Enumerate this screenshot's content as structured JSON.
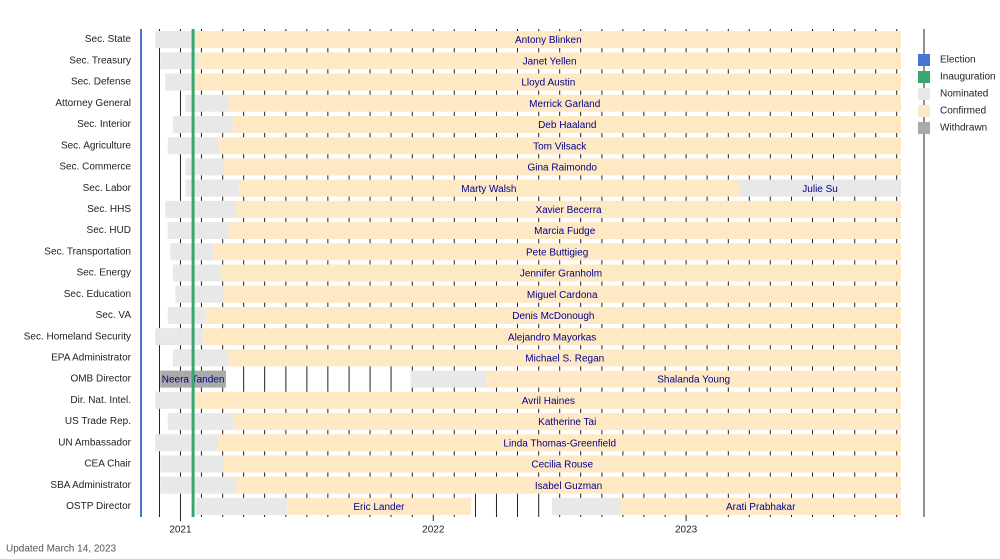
{
  "chart_data": {
    "type": "timeline",
    "footnote": "Updated March 14, 2023",
    "xlim": [
      2020.84,
      2023.85
    ],
    "xticks": [
      2021,
      2022,
      2023
    ],
    "xminorticks": [
      2020.917,
      2021,
      2021.083,
      2021.167,
      2021.25,
      2021.333,
      2021.417,
      2021.5,
      2021.583,
      2021.667,
      2021.75,
      2021.833,
      2021.917,
      2022,
      2022.083,
      2022.167,
      2022.25,
      2022.333,
      2022.417,
      2022.5,
      2022.583,
      2022.667,
      2022.75,
      2022.833,
      2022.917,
      2023,
      2023.083,
      2023.167,
      2023.25,
      2023.333,
      2023.417,
      2023.5,
      2023.583,
      2023.667,
      2023.75,
      2023.833
    ],
    "election": 2020.84,
    "inauguration": 2021.05,
    "series": [
      {
        "name": "Election",
        "color": "#4a74d0"
      },
      {
        "name": "Inauguration",
        "color": "#3aa66f"
      },
      {
        "name": "Nominated",
        "color": "#e8e8e8"
      },
      {
        "name": "Confirmed",
        "color": "#ffe9c4"
      },
      {
        "name": "Withdrawn",
        "color": "#aaaaaa"
      }
    ],
    "rows": [
      {
        "label": "Sec. State",
        "terms": [
          {
            "name": "Antony Blinken",
            "nominated": 2020.9,
            "confirmed": 2021.06,
            "end": 2023.85
          }
        ]
      },
      {
        "label": "Sec. Treasury",
        "terms": [
          {
            "name": "Janet Yellen",
            "nominated": 2020.92,
            "confirmed": 2021.07,
            "end": 2023.85
          }
        ]
      },
      {
        "label": "Sec. Defense",
        "terms": [
          {
            "name": "Lloyd Austin",
            "nominated": 2020.94,
            "confirmed": 2021.06,
            "end": 2023.85
          }
        ]
      },
      {
        "label": "Attorney General",
        "terms": [
          {
            "name": "Merrick Garland",
            "nominated": 2021.02,
            "confirmed": 2021.19,
            "end": 2023.85
          }
        ]
      },
      {
        "label": "Sec. Interior",
        "terms": [
          {
            "name": "Deb Haaland",
            "nominated": 2020.97,
            "confirmed": 2021.21,
            "end": 2023.85
          }
        ]
      },
      {
        "label": "Sec. Agriculture",
        "terms": [
          {
            "name": "Tom Vilsack",
            "nominated": 2020.95,
            "confirmed": 2021.15,
            "end": 2023.85
          }
        ]
      },
      {
        "label": "Sec. Commerce",
        "terms": [
          {
            "name": "Gina Raimondo",
            "nominated": 2021.02,
            "confirmed": 2021.17,
            "end": 2023.85
          }
        ]
      },
      {
        "label": "Sec. Labor",
        "terms": [
          {
            "name": "Marty Walsh",
            "nominated": 2021.02,
            "confirmed": 2021.23,
            "end": 2023.21
          },
          {
            "name": "Julie Su",
            "nominated": 2023.21,
            "end": 2023.85
          }
        ]
      },
      {
        "label": "Sec. HHS",
        "terms": [
          {
            "name": "Xavier Becerra",
            "nominated": 2020.94,
            "confirmed": 2021.22,
            "end": 2023.85
          }
        ]
      },
      {
        "label": "Sec. HUD",
        "terms": [
          {
            "name": "Marcia Fudge",
            "nominated": 2020.95,
            "confirmed": 2021.19,
            "end": 2023.85
          }
        ]
      },
      {
        "label": "Sec. Transportation",
        "terms": [
          {
            "name": "Pete Buttigieg",
            "nominated": 2020.96,
            "confirmed": 2021.13,
            "end": 2023.85
          }
        ]
      },
      {
        "label": "Sec. Energy",
        "terms": [
          {
            "name": "Jennifer Granholm",
            "nominated": 2020.97,
            "confirmed": 2021.16,
            "end": 2023.85
          }
        ]
      },
      {
        "label": "Sec. Education",
        "terms": [
          {
            "name": "Miguel Cardona",
            "nominated": 2020.98,
            "confirmed": 2021.17,
            "end": 2023.85
          }
        ]
      },
      {
        "label": "Sec. VA",
        "terms": [
          {
            "name": "Denis McDonough",
            "nominated": 2020.95,
            "confirmed": 2021.1,
            "end": 2023.85
          }
        ]
      },
      {
        "label": "Sec. Homeland Security",
        "terms": [
          {
            "name": "Alejandro Mayorkas",
            "nominated": 2020.9,
            "confirmed": 2021.09,
            "end": 2023.85
          }
        ]
      },
      {
        "label": "EPA Administrator",
        "terms": [
          {
            "name": "Michael S. Regan",
            "nominated": 2020.97,
            "confirmed": 2021.19,
            "end": 2023.85
          }
        ]
      },
      {
        "label": "OMB Director",
        "terms": [
          {
            "name": "Neera Tanden",
            "nominated": 2020.92,
            "withdrawn": 2021.18
          },
          {
            "name": "Shalanda Young",
            "nominated": 2021.91,
            "confirmed": 2022.21,
            "end": 2023.85
          }
        ]
      },
      {
        "label": "Dir. Nat. Intel.",
        "terms": [
          {
            "name": "Avril Haines",
            "nominated": 2020.9,
            "confirmed": 2021.06,
            "end": 2023.85
          }
        ]
      },
      {
        "label": "US Trade Rep.",
        "terms": [
          {
            "name": "Katherine Tai",
            "nominated": 2020.95,
            "confirmed": 2021.21,
            "end": 2023.85
          }
        ]
      },
      {
        "label": "UN Ambassador",
        "terms": [
          {
            "name": "Linda Thomas-Greenfield",
            "nominated": 2020.9,
            "confirmed": 2021.15,
            "end": 2023.85
          }
        ]
      },
      {
        "label": "CEA Chair",
        "terms": [
          {
            "name": "Cecilia Rouse",
            "nominated": 2020.92,
            "confirmed": 2021.17,
            "end": 2023.85
          }
        ]
      },
      {
        "label": "SBA Administrator",
        "terms": [
          {
            "name": "Isabel Guzman",
            "nominated": 2020.92,
            "confirmed": 2021.22,
            "end": 2023.85
          }
        ]
      },
      {
        "label": "OSTP Director",
        "terms": [
          {
            "name": "Eric Lander",
            "nominated": 2021.06,
            "confirmed": 2021.42,
            "end": 2022.15
          },
          {
            "name": "Arati Prabhakar",
            "nominated": 2022.47,
            "confirmed": 2022.74,
            "end": 2023.85
          }
        ]
      }
    ]
  }
}
